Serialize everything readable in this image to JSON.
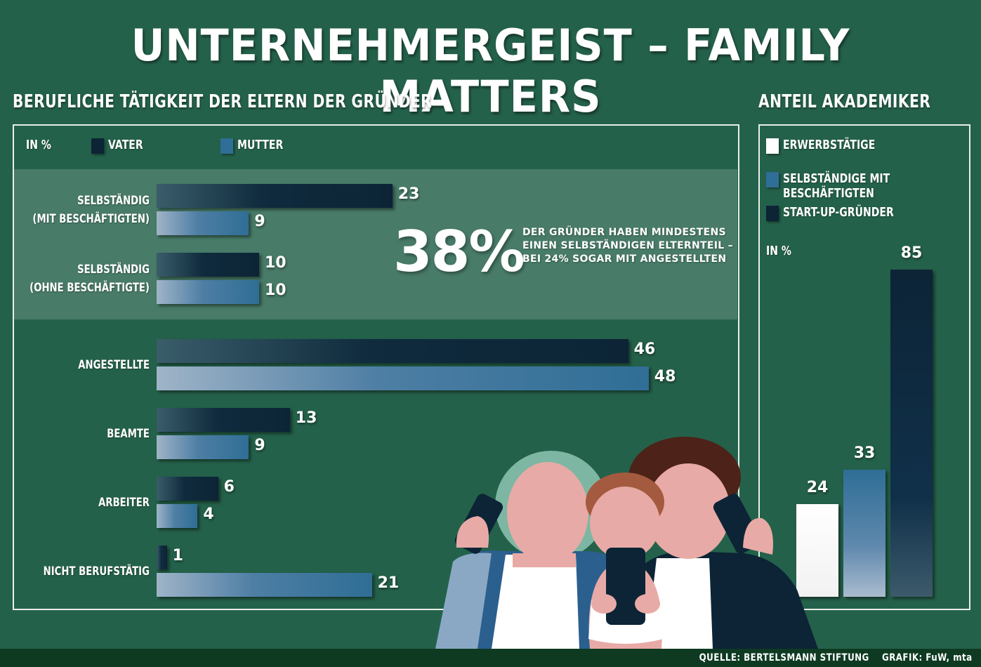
{
  "title": "UNTERNEHMERGEIST – FAMILY MATTERS",
  "left_section_title": "BERUFLICHE TÄTIGKEIT DER ELTERN DER GRÜNDER",
  "right_section_title": "ANTEIL AKADEMIKER",
  "colors": {
    "background": "#24614a",
    "vater": "#0c2436",
    "mutter": "#2f6e96",
    "erwerbstaetige": "#ffffff",
    "selbstaendige": "#2f6e96",
    "startup": "#0c2436"
  },
  "highlight": {
    "big_number": "38%",
    "lines": [
      "DER GRÜNDER HABEN MINDESTENS",
      "EINEN SELBSTÄNDIGEN ELTERNTEIL –",
      "BEI 24% SOGAR MIT ANGESTELLTEN"
    ]
  },
  "footer": {
    "source": "QUELLE: BERTELSMANN STIFTUNG",
    "credit": "GRAFIK: FuW, mta"
  },
  "chart_data": [
    {
      "type": "bar",
      "unit_label": "IN %",
      "categories": [
        [
          "SELBSTÄNDIG",
          "(MIT BESCHÄFTIGTEN)"
        ],
        [
          "SELBSTÄNDIG",
          "(OHNE BESCHÄFTIGTE)"
        ],
        [
          "ANGESTELLTE"
        ],
        [
          "BEAMTE"
        ],
        [
          "ARBEITER"
        ],
        [
          "NICHT BERUFSTÄTIG"
        ]
      ],
      "series": [
        {
          "name": "VATER",
          "values": [
            23,
            10,
            46,
            13,
            6,
            1
          ]
        },
        {
          "name": "MUTTER",
          "values": [
            9,
            10,
            48,
            9,
            4,
            21
          ]
        }
      ],
      "orientation": "horizontal",
      "legend": "top-left"
    },
    {
      "type": "bar",
      "unit_label": "IN %",
      "categories": [
        "ERWERBSTÄTIGE",
        "SELBSTÄNDIGE MIT BESCHÄFTIGTEN",
        "START-UP-GRÜNDER"
      ],
      "values": [
        24,
        33,
        85
      ],
      "orientation": "vertical",
      "legend": "top"
    }
  ]
}
